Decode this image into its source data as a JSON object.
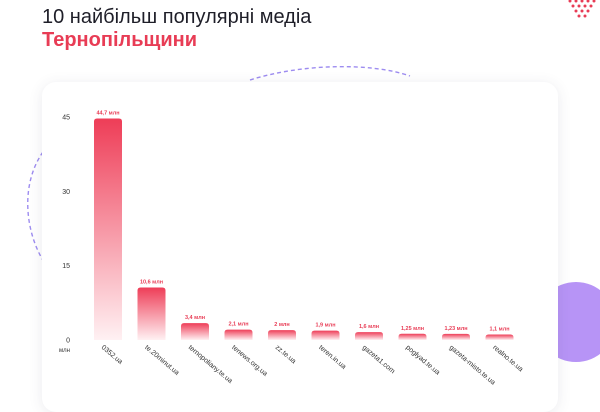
{
  "page": {
    "title_line1": "10 найбільш популярні медіа",
    "title_line2": "Тернопільщини"
  },
  "colors": {
    "accent": "#e83c55",
    "bar_top": "#ee3d57",
    "bar_bottom": "#fff1f3",
    "decor_purple": "#b794f6"
  },
  "chart_data": {
    "type": "bar",
    "categories": [
      "0352.ua",
      "te.20minut.ua",
      "ternopoliany.te.ua",
      "tenews.org.ua",
      "zz.te.ua",
      "teren.in.ua",
      "gazeta1.com",
      "poglyad.te.ua",
      "gazeta-misto.te.ua",
      "realno.te.ua"
    ],
    "values": [
      44.7,
      10.6,
      3.4,
      2.1,
      2,
      1.9,
      1.6,
      1.25,
      1.23,
      1.1
    ],
    "value_labels": [
      "44,7 млн",
      "10,6 млн",
      "3,4 млн",
      "2,1 млн",
      "2 млн",
      "1,9 млн",
      "1,6 млн",
      "1,25 млн",
      "1,23 млн",
      "1,1 млн"
    ],
    "y_ticks": [
      0,
      15,
      30,
      45
    ],
    "ylim": [
      0,
      45
    ],
    "y_unit": "млн",
    "grid": false
  }
}
